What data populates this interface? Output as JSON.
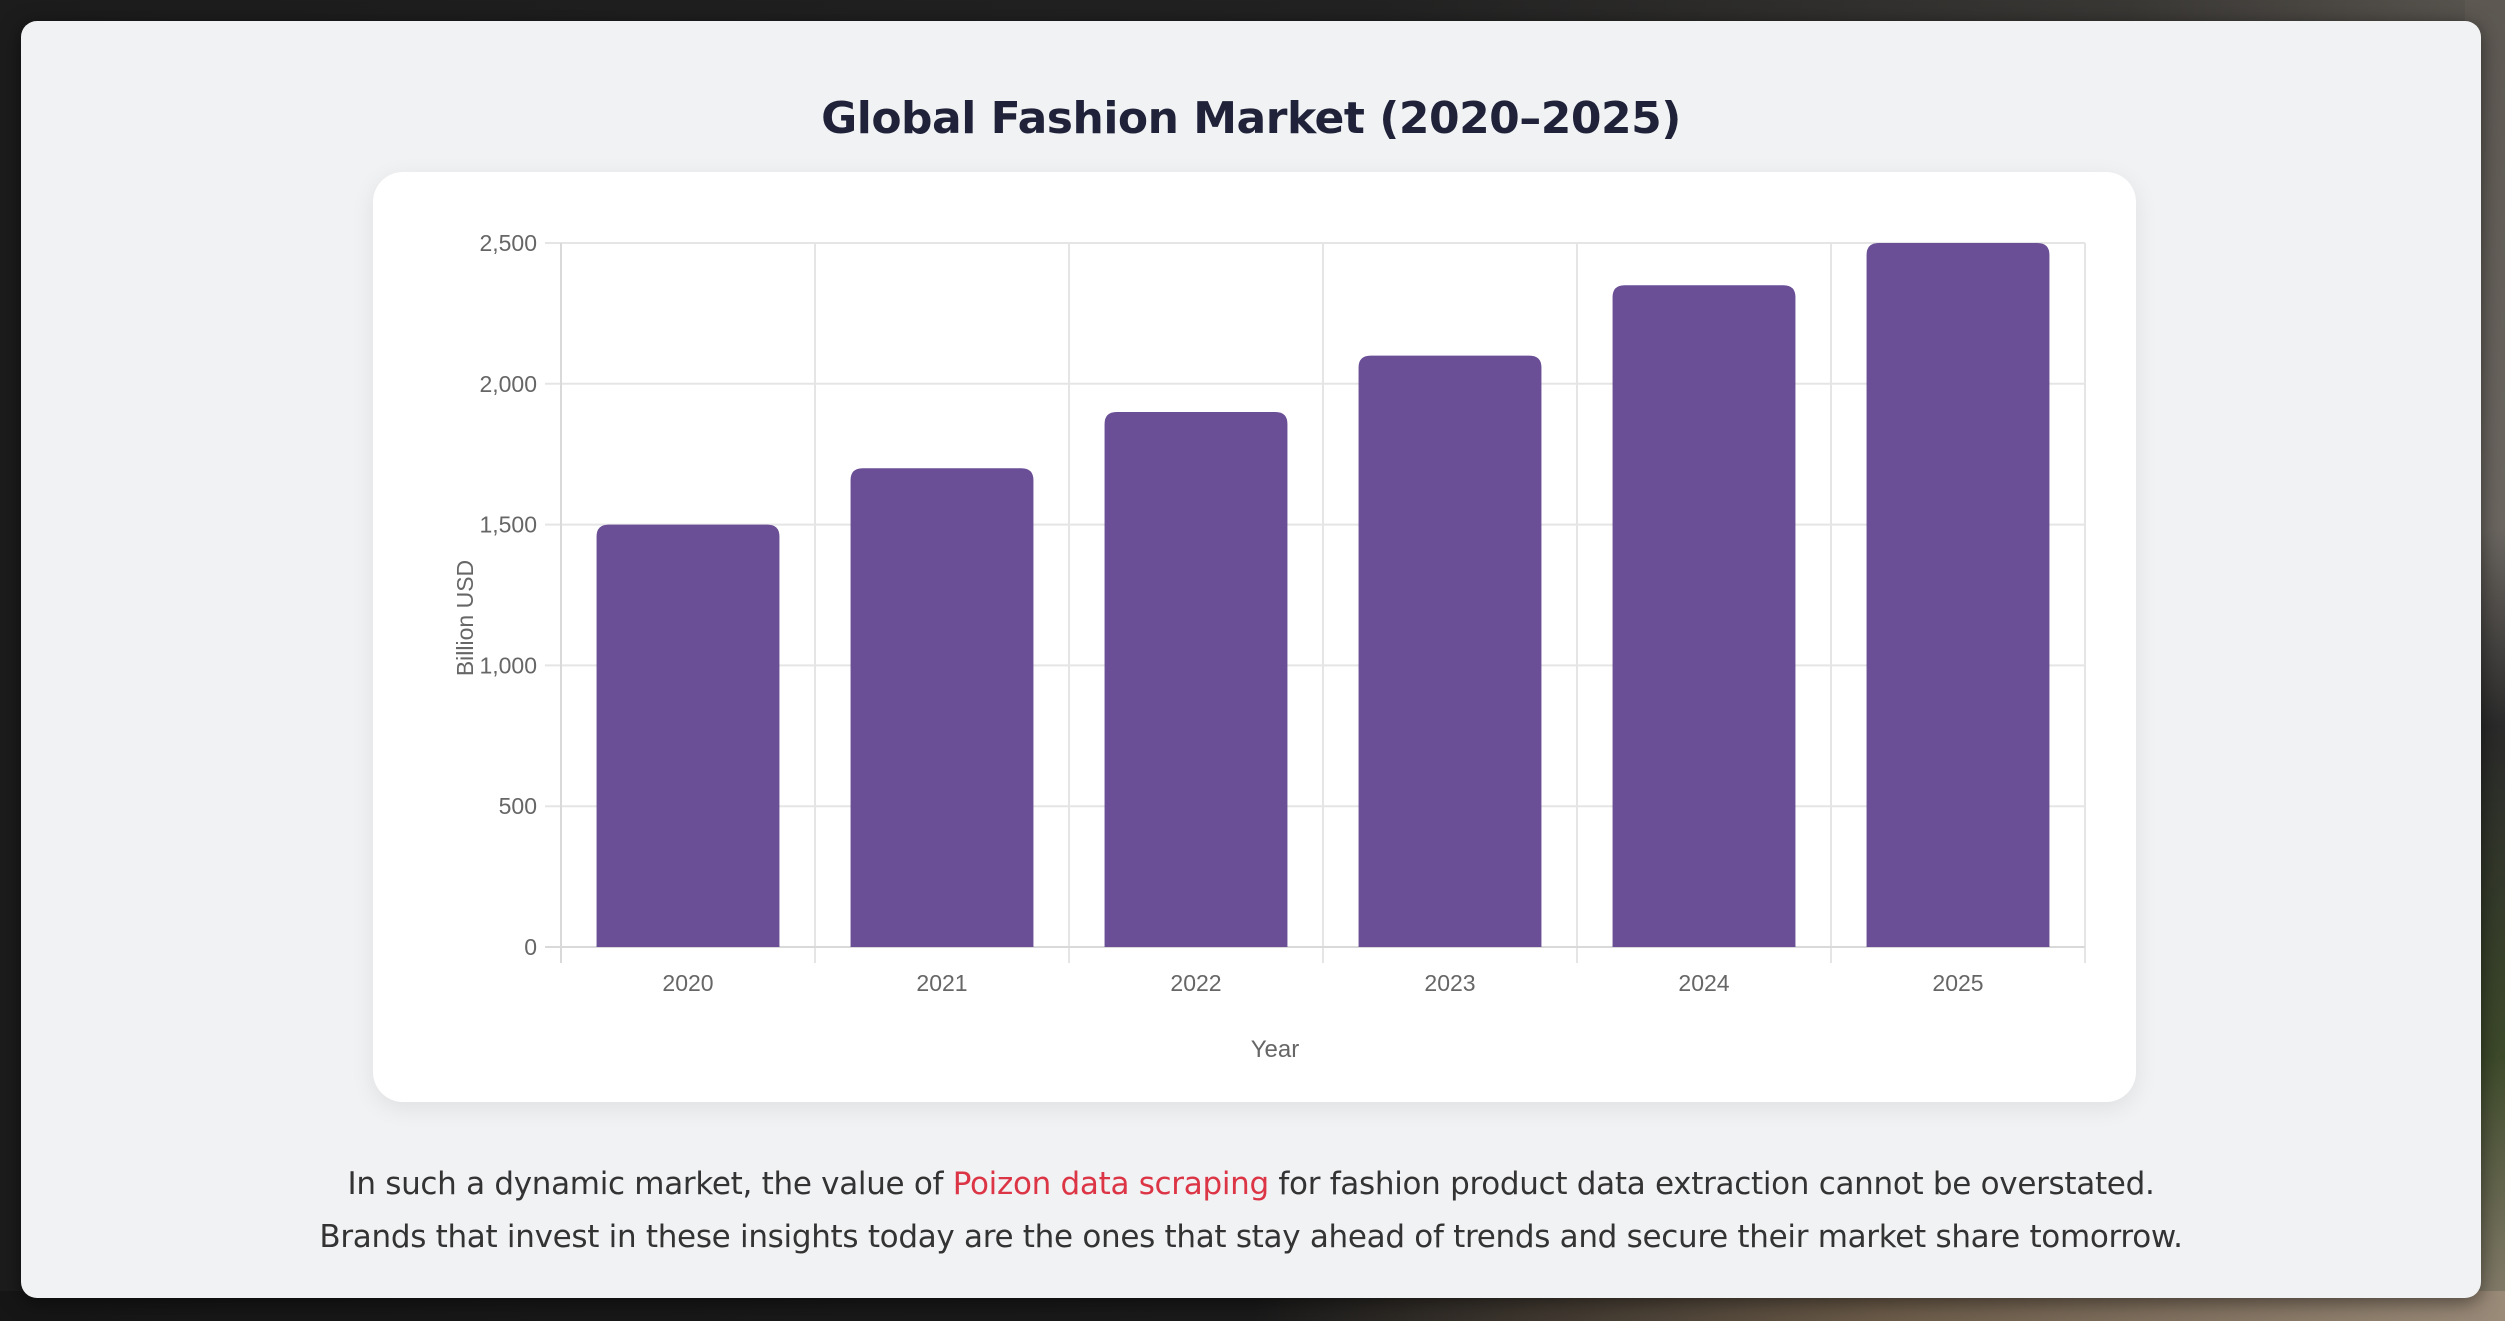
{
  "page": {
    "title": "Global Fashion Market (2020–2025)"
  },
  "chart_data": {
    "type": "bar",
    "title": "Global Fashion Market (2020–2025)",
    "xlabel": "Year",
    "ylabel": "Billion USD",
    "categories": [
      "2020",
      "2021",
      "2022",
      "2023",
      "2024",
      "2025"
    ],
    "values": [
      1500,
      1700,
      1900,
      2100,
      2350,
      2500
    ],
    "ylim": [
      0,
      2500
    ],
    "yticks": [
      0,
      500,
      1000,
      1500,
      2000,
      2500
    ],
    "ytick_labels": [
      "0",
      "500",
      "1,000",
      "1,500",
      "2,000",
      "2,500"
    ],
    "grid": true,
    "legend": "none",
    "bar_color": "#6a4f96"
  },
  "paragraph": {
    "line1_before": "In such a dynamic market, the value of ",
    "line1_link": "Poizon data scraping",
    "line1_after": " for fashion product data extraction cannot be overstated.",
    "line2": "Brands that invest in these insights today are the ones that stay ahead of trends and secure their market share tomorrow."
  },
  "colors": {
    "panel_bg": "#f1f2f4",
    "title": "#1f2238",
    "bar": "#6a4f96",
    "link": "#dc3545",
    "text": "#333333",
    "axis_text": "#666666",
    "grid": "#e5e5e5"
  }
}
